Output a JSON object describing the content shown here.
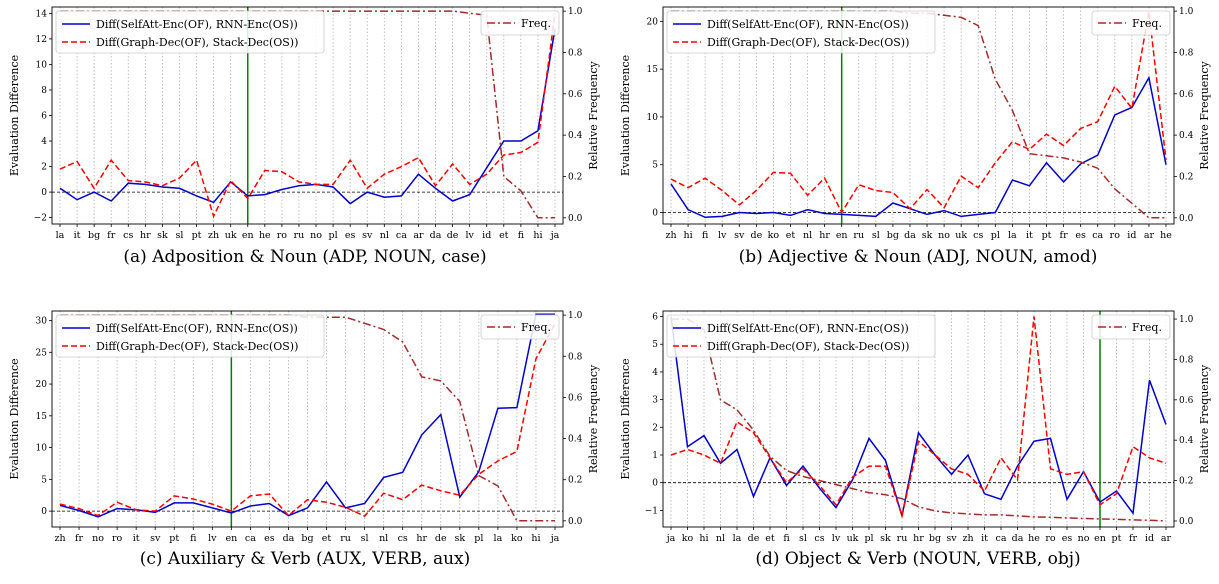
{
  "chart_data": [
    {
      "panel": "a",
      "type": "line",
      "caption": "(a) Adposition & Noun (ADP, NOUN, case)",
      "ylabel": "Evaluation Difference",
      "ylabel_right": "Relative Frequency",
      "ylim": [
        -2.5,
        14.5
      ],
      "yticks": [
        -2,
        0,
        2,
        4,
        6,
        8,
        10,
        12,
        14
      ],
      "ylim_right": [
        -0.03,
        1.02
      ],
      "yticks_right": [
        0.0,
        0.2,
        0.4,
        0.6,
        0.8,
        1.0
      ],
      "categories": [
        "la",
        "it",
        "bg",
        "fr",
        "cs",
        "hr",
        "sk",
        "sl",
        "pt",
        "zh",
        "uk",
        "en",
        "he",
        "ro",
        "ru",
        "no",
        "pl",
        "es",
        "sv",
        "nl",
        "ca",
        "ar",
        "da",
        "de",
        "lv",
        "id",
        "et",
        "fi",
        "hi",
        "ja"
      ],
      "marker_category": "en",
      "grid": "vertical dotted",
      "legend_left": "upper-left",
      "legend_right": "upper-right",
      "series": [
        {
          "name": "Diff(SelfAtt-Enc(OF), RNN-Enc(OS))",
          "color": "#0000cc",
          "style": "solid",
          "axis": "left",
          "values": [
            0.3,
            -0.6,
            0.0,
            -0.7,
            0.7,
            0.6,
            0.4,
            0.3,
            -0.3,
            -0.8,
            0.8,
            -0.3,
            -0.2,
            0.2,
            0.5,
            0.6,
            0.4,
            -0.9,
            0.0,
            -0.4,
            -0.3,
            1.4,
            0.3,
            -0.7,
            -0.2,
            1.9,
            4.0,
            4.0,
            4.8,
            12.8
          ]
        },
        {
          "name": "Diff(Graph-Dec(OF), Stack-Dec(OS))",
          "color": "#ff0000",
          "style": "dashed",
          "axis": "left",
          "values": [
            1.8,
            2.4,
            0.3,
            2.5,
            0.9,
            0.8,
            0.5,
            1.1,
            2.5,
            -1.9,
            0.9,
            -0.5,
            1.7,
            1.6,
            0.8,
            0.6,
            0.6,
            2.5,
            0.3,
            1.4,
            2.0,
            2.7,
            0.5,
            2.2,
            0.6,
            1.4,
            2.9,
            3.1,
            3.9,
            14.0
          ]
        },
        {
          "name": "Freq.",
          "color": "#a52a2a",
          "style": "dashdot",
          "axis": "right",
          "values": [
            1.0,
            1.0,
            1.0,
            1.0,
            1.0,
            1.0,
            1.0,
            1.0,
            1.0,
            1.0,
            1.0,
            1.0,
            1.0,
            1.0,
            1.0,
            1.0,
            1.0,
            1.0,
            1.0,
            1.0,
            1.0,
            1.0,
            1.0,
            1.0,
            0.99,
            0.98,
            0.2,
            0.13,
            0.0,
            0.0
          ]
        }
      ]
    },
    {
      "panel": "b",
      "type": "line",
      "caption": "(b) Adjective & Noun (ADJ, NOUN, amod)",
      "ylabel": "Evaluation Difference",
      "ylabel_right": "Relative Frequency",
      "ylim": [
        -1.2,
        21.5
      ],
      "yticks": [
        0,
        5,
        10,
        15,
        20
      ],
      "ylim_right": [
        -0.03,
        1.02
      ],
      "yticks_right": [
        0.0,
        0.2,
        0.4,
        0.6,
        0.8,
        1.0
      ],
      "categories": [
        "zh",
        "hi",
        "fi",
        "lv",
        "sv",
        "de",
        "ko",
        "et",
        "nl",
        "hr",
        "en",
        "ru",
        "sl",
        "bg",
        "da",
        "sk",
        "no",
        "uk",
        "cs",
        "pl",
        "la",
        "it",
        "pt",
        "fr",
        "es",
        "ca",
        "ro",
        "id",
        "ar",
        "he"
      ],
      "marker_category": "en",
      "grid": "vertical dotted",
      "legend_left": "upper-left",
      "legend_right": "upper-right",
      "series": [
        {
          "name": "Diff(SelfAtt-Enc(OF), RNN-Enc(OS))",
          "color": "#0000cc",
          "style": "solid",
          "axis": "left",
          "values": [
            3.0,
            0.3,
            -0.5,
            -0.4,
            0.0,
            -0.1,
            0.0,
            -0.3,
            0.3,
            -0.1,
            -0.2,
            -0.3,
            -0.4,
            1.0,
            0.4,
            -0.2,
            0.2,
            -0.4,
            -0.2,
            0.0,
            3.4,
            2.8,
            5.2,
            3.2,
            5.1,
            6.0,
            10.2,
            11.0,
            14.1,
            5.0
          ]
        },
        {
          "name": "Diff(Graph-Dec(OF), Stack-Dec(OS))",
          "color": "#ff0000",
          "style": "dashed",
          "axis": "left",
          "values": [
            3.5,
            2.6,
            3.6,
            2.3,
            0.8,
            2.3,
            4.2,
            4.1,
            1.8,
            3.6,
            0.0,
            2.9,
            2.3,
            2.1,
            0.4,
            2.4,
            0.5,
            3.8,
            2.6,
            5.2,
            7.4,
            6.6,
            8.2,
            7.0,
            8.8,
            9.5,
            13.2,
            10.9,
            21.0,
            5.5
          ]
        },
        {
          "name": "Freq.",
          "color": "#a52a2a",
          "style": "dashdot",
          "axis": "right",
          "values": [
            1.0,
            1.0,
            1.0,
            1.0,
            1.0,
            1.0,
            1.0,
            1.0,
            1.0,
            1.0,
            1.0,
            1.0,
            1.0,
            1.0,
            0.99,
            0.99,
            0.98,
            0.97,
            0.93,
            0.67,
            0.52,
            0.31,
            0.3,
            0.29,
            0.27,
            0.24,
            0.14,
            0.07,
            0.0,
            0.0
          ]
        }
      ]
    },
    {
      "panel": "c",
      "type": "line",
      "caption": "(c) Auxiliary & Verb (AUX, VERB, aux)",
      "ylabel": "Evaluation Difference",
      "ylabel_right": "Relative Frequency",
      "ylim": [
        -2.5,
        31.5
      ],
      "yticks": [
        0,
        5,
        10,
        15,
        20,
        25,
        30
      ],
      "ylim_right": [
        -0.03,
        1.02
      ],
      "yticks_right": [
        0.0,
        0.2,
        0.4,
        0.6,
        0.8,
        1.0
      ],
      "categories": [
        "zh",
        "fr",
        "no",
        "ro",
        "it",
        "sv",
        "pt",
        "fi",
        "lv",
        "en",
        "ca",
        "es",
        "da",
        "bg",
        "et",
        "ru",
        "sl",
        "nl",
        "cs",
        "hr",
        "de",
        "sk",
        "pl",
        "la",
        "ko",
        "hi",
        "ja"
      ],
      "marker_category": "en",
      "grid": "vertical dotted",
      "legend_left": "upper-left",
      "legend_right": "upper-right",
      "series": [
        {
          "name": "Diff(SelfAtt-Enc(OF), RNN-Enc(OS))",
          "color": "#0000cc",
          "style": "solid",
          "axis": "left",
          "values": [
            0.9,
            0.1,
            -0.9,
            0.4,
            0.2,
            -0.2,
            1.3,
            1.3,
            0.5,
            -0.3,
            0.8,
            1.2,
            -0.7,
            0.5,
            4.6,
            0.5,
            1.2,
            5.3,
            6.1,
            12.0,
            15.2,
            2.2,
            6.2,
            16.2,
            16.3,
            31.0,
            31.0
          ]
        },
        {
          "name": "Diff(Graph-Dec(OF), Stack-Dec(OS))",
          "color": "#ff0000",
          "style": "dashed",
          "axis": "left",
          "values": [
            1.1,
            0.4,
            -0.7,
            1.4,
            0.2,
            0.0,
            2.4,
            1.9,
            1.1,
            0.0,
            2.4,
            2.7,
            -0.7,
            1.8,
            1.4,
            0.6,
            -0.8,
            2.8,
            1.8,
            4.1,
            3.2,
            2.5,
            5.8,
            7.9,
            9.4,
            24.0,
            29.5
          ]
        },
        {
          "name": "Freq.",
          "color": "#a52a2a",
          "style": "dashdot",
          "axis": "right",
          "values": [
            1.0,
            1.0,
            1.0,
            1.0,
            1.0,
            1.0,
            1.0,
            1.0,
            1.0,
            1.0,
            1.0,
            1.0,
            1.0,
            0.99,
            0.99,
            0.99,
            0.96,
            0.93,
            0.87,
            0.7,
            0.68,
            0.58,
            0.22,
            0.17,
            0.0,
            0.0,
            0.0
          ]
        }
      ]
    },
    {
      "panel": "d",
      "type": "line",
      "caption": "(d) Object & Verb (NOUN, VERB, obj)",
      "ylabel": "Evaluation Difference",
      "ylabel_right": "Relative Frequency",
      "ylim": [
        -1.6,
        6.2
      ],
      "yticks": [
        -1,
        0,
        1,
        2,
        3,
        4,
        5,
        6
      ],
      "ylim_right": [
        -0.03,
        1.04
      ],
      "yticks_right": [
        0.0,
        0.2,
        0.4,
        0.6,
        0.8,
        1.0
      ],
      "categories": [
        "ja",
        "ko",
        "hi",
        "nl",
        "la",
        "de",
        "et",
        "fi",
        "sl",
        "cs",
        "lv",
        "uk",
        "pl",
        "sk",
        "ru",
        "hr",
        "bg",
        "sv",
        "zh",
        "it",
        "ca",
        "da",
        "he",
        "ro",
        "es",
        "no",
        "en",
        "pt",
        "fr",
        "id",
        "ar"
      ],
      "marker_category": "en",
      "grid": "vertical dotted",
      "legend_left": "upper-left",
      "legend_right": "upper-right",
      "series": [
        {
          "name": "Diff(SelfAtt-Enc(OF), RNN-Enc(OS))",
          "color": "#0000cc",
          "style": "solid",
          "axis": "left",
          "values": [
            6.0,
            1.3,
            1.7,
            0.7,
            1.2,
            -0.5,
            0.9,
            -0.1,
            0.6,
            -0.2,
            -0.9,
            0.1,
            1.6,
            0.8,
            -1.2,
            1.8,
            1.0,
            0.3,
            1.0,
            -0.4,
            -0.6,
            0.6,
            1.5,
            1.6,
            -0.6,
            0.4,
            -0.7,
            -0.3,
            -1.1,
            3.7,
            2.1
          ]
        },
        {
          "name": "Diff(Graph-Dec(OF), Stack-Dec(OS))",
          "color": "#ff0000",
          "style": "dashed",
          "axis": "left",
          "values": [
            1.0,
            1.2,
            1.0,
            0.7,
            2.2,
            1.8,
            0.9,
            0.0,
            0.5,
            -0.1,
            -0.8,
            0.2,
            0.6,
            0.6,
            -1.2,
            1.5,
            1.0,
            0.5,
            0.3,
            -0.3,
            0.9,
            0.1,
            6.0,
            0.5,
            0.3,
            0.4,
            -0.8,
            -0.4,
            1.3,
            0.9,
            0.7
          ]
        },
        {
          "name": "Freq.",
          "color": "#a52a2a",
          "style": "dashdot",
          "axis": "right",
          "values": [
            1.0,
            1.0,
            0.95,
            0.6,
            0.55,
            0.45,
            0.32,
            0.25,
            0.22,
            0.2,
            0.18,
            0.16,
            0.14,
            0.13,
            0.11,
            0.07,
            0.05,
            0.04,
            0.035,
            0.03,
            0.03,
            0.025,
            0.02,
            0.018,
            0.015,
            0.012,
            0.01,
            0.008,
            0.005,
            0.003,
            0.0
          ]
        }
      ]
    }
  ]
}
